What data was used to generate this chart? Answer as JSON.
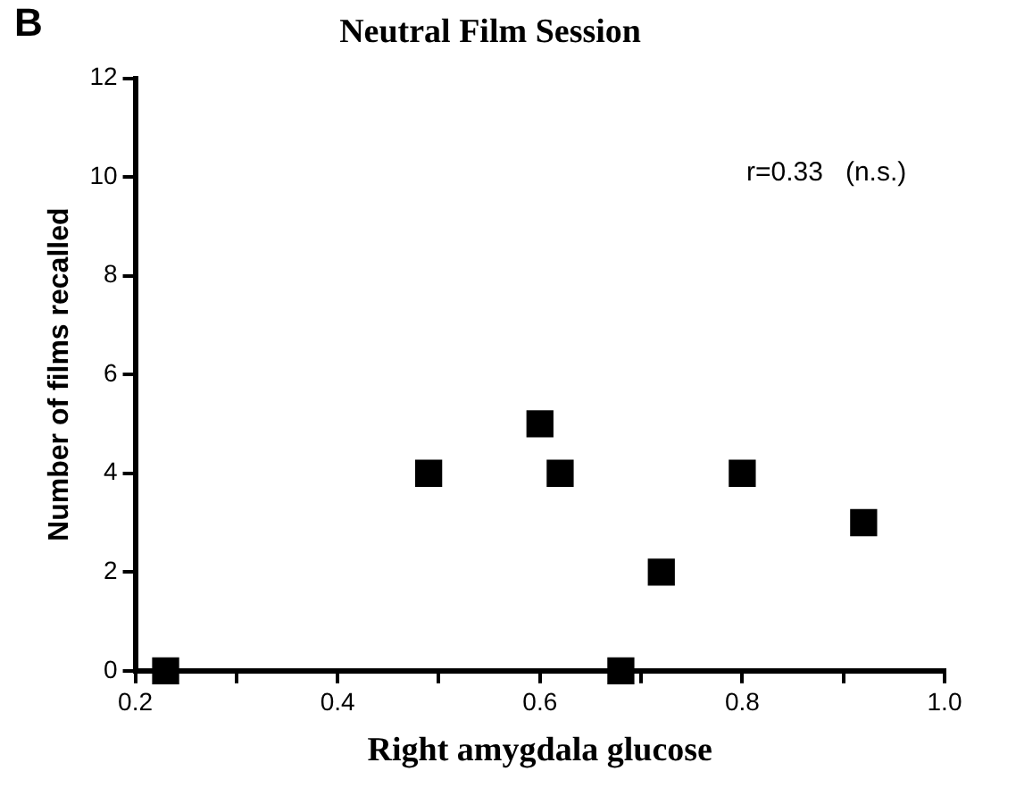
{
  "chart_data": {
    "type": "scatter",
    "title": "Neutral Film Session",
    "xlabel": "Right amygdala glucose",
    "ylabel": "Number of films recalled",
    "annotations": [
      "B",
      "r=0.33   (n.s.)"
    ],
    "x": [
      0.23,
      0.49,
      0.6,
      0.62,
      0.68,
      0.72,
      0.8,
      0.92
    ],
    "values": [
      0,
      4,
      5,
      4,
      0,
      2,
      4,
      3
    ],
    "color": "#000000",
    "marker": "square",
    "xlim": [
      0.2,
      1.0
    ],
    "xticks": [
      {
        "value": 0.2,
        "label": "0.2"
      },
      {
        "value": 0.3,
        "label": null
      },
      {
        "value": 0.4,
        "label": "0.4"
      },
      {
        "value": 0.5,
        "label": null
      },
      {
        "value": 0.6,
        "label": "0.6"
      },
      {
        "value": 0.7,
        "label": null
      },
      {
        "value": 0.8,
        "label": "0.8"
      },
      {
        "value": 0.9,
        "label": null
      },
      {
        "value": 1.0,
        "label": "1.0"
      }
    ],
    "ylim": [
      0,
      12
    ],
    "yticks": [
      0,
      2,
      4,
      6,
      8,
      10,
      12
    ],
    "grid": false,
    "legend": false
  }
}
